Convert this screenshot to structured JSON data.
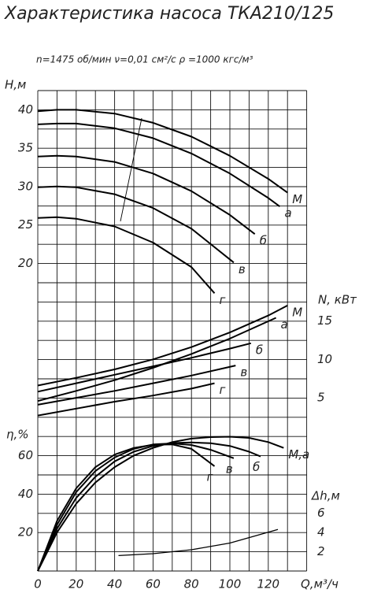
{
  "chart_data": [
    {
      "type": "line",
      "title": "Характеристика насоса ТКА210/125",
      "subtitle": "n=1475 об/мин   ν=0,01 см²/с   ρ =1000 кгс/м³",
      "y_label": "H,м",
      "y_axis_side": "left",
      "xlim": [
        0,
        140
      ],
      "ylim": [
        15,
        42.5
      ],
      "yticks": [
        20,
        25,
        30,
        35,
        40
      ],
      "series": [
        {
          "name": "М",
          "color": "#000000",
          "x": [
            0,
            10,
            20,
            40,
            60,
            80,
            100,
            120,
            130
          ],
          "values": [
            39.8,
            40,
            40,
            39.5,
            38.3,
            36.5,
            34,
            31,
            29.2
          ]
        },
        {
          "name": "а",
          "color": "#000000",
          "x": [
            0,
            10,
            20,
            40,
            60,
            80,
            100,
            120,
            126
          ],
          "values": [
            38.1,
            38.2,
            38.2,
            37.6,
            36.3,
            34.3,
            31.7,
            28.5,
            27.4
          ]
        },
        {
          "name": "б",
          "color": "#000000",
          "x": [
            0,
            10,
            20,
            40,
            60,
            80,
            100,
            113
          ],
          "values": [
            33.9,
            34,
            33.9,
            33.2,
            31.7,
            29.4,
            26.3,
            23.8
          ]
        },
        {
          "name": "в",
          "color": "#000000",
          "x": [
            0,
            10,
            20,
            40,
            60,
            80,
            102
          ],
          "values": [
            29.9,
            30,
            29.9,
            29,
            27.2,
            24.5,
            20.1
          ]
        },
        {
          "name": "г",
          "color": "#000000",
          "x": [
            0,
            10,
            20,
            40,
            60,
            80,
            92
          ],
          "values": [
            25.9,
            26,
            25.8,
            24.8,
            22.7,
            19.5,
            16.1
          ]
        }
      ]
    },
    {
      "type": "line",
      "y_label": "N, кВт",
      "y_axis_side": "right",
      "xlim": [
        0,
        140
      ],
      "ylim": [
        0,
        17.5
      ],
      "yticks": [
        5,
        10,
        15
      ],
      "series": [
        {
          "name": "М",
          "color": "#000000",
          "x": [
            0,
            20,
            40,
            60,
            80,
            100,
            120,
            130
          ],
          "values": [
            6.6,
            7.6,
            8.7,
            10,
            11.6,
            13.5,
            15.7,
            17
          ]
        },
        {
          "name": "а",
          "color": "#000000",
          "x": [
            0,
            20,
            40,
            60,
            80,
            100,
            124
          ],
          "values": [
            4.6,
            5.9,
            7.3,
            8.9,
            10.7,
            12.7,
            15.4
          ]
        },
        {
          "name": "б",
          "color": "#000000",
          "x": [
            0,
            20,
            40,
            60,
            80,
            100,
            111
          ],
          "values": [
            5.8,
            6.9,
            8,
            9.1,
            10.2,
            11.4,
            12.1
          ]
        },
        {
          "name": "в",
          "color": "#000000",
          "x": [
            0,
            20,
            40,
            60,
            80,
            103
          ],
          "values": [
            4.1,
            5,
            5.9,
            6.9,
            7.9,
            9.2
          ]
        },
        {
          "name": "г",
          "color": "#000000",
          "x": [
            0,
            20,
            40,
            60,
            80,
            92
          ],
          "values": [
            2.7,
            3.6,
            4.5,
            5.3,
            6.2,
            6.9
          ]
        }
      ]
    },
    {
      "type": "line",
      "y_label": "η,%",
      "y_axis_side": "left",
      "x_label": "Q,м³/ч",
      "xlim": [
        0,
        140
      ],
      "xticks": [
        0,
        20,
        40,
        60,
        80,
        100,
        120
      ],
      "ylim": [
        0,
        70
      ],
      "yticks": [
        20,
        40,
        60
      ],
      "series": [
        {
          "name": "М,а",
          "color": "#000000",
          "x": [
            0,
            10,
            20,
            30,
            40,
            50,
            60,
            70,
            80,
            90,
            100,
            110,
            120,
            128
          ],
          "values": [
            0,
            20,
            35,
            46,
            54,
            60,
            64,
            67,
            68.8,
            69.6,
            69.8,
            69.2,
            67,
            64
          ]
        },
        {
          "name": "б",
          "color": "#000000",
          "x": [
            0,
            10,
            20,
            30,
            40,
            50,
            60,
            70,
            80,
            90,
            100,
            110,
            116
          ],
          "values": [
            0,
            22,
            38,
            49,
            57,
            62,
            65,
            66.5,
            66.8,
            66.4,
            65,
            62,
            59.5
          ]
        },
        {
          "name": "в",
          "color": "#000000",
          "x": [
            0,
            10,
            20,
            30,
            40,
            50,
            60,
            70,
            80,
            90,
            102
          ],
          "values": [
            0,
            24,
            41,
            52,
            59,
            63.5,
            65.8,
            66.3,
            65.5,
            63,
            58.6
          ]
        },
        {
          "name": "г",
          "color": "#000000",
          "x": [
            0,
            10,
            20,
            30,
            40,
            50,
            60,
            70,
            80,
            92
          ],
          "values": [
            0,
            26,
            43,
            54,
            60.5,
            64,
            65.6,
            65.8,
            63.5,
            54.5
          ]
        }
      ]
    },
    {
      "type": "line",
      "y_label": "Δh,м",
      "y_axis_side": "right",
      "xlim": [
        0,
        140
      ],
      "ylim": [
        0,
        8
      ],
      "yticks": [
        2,
        4,
        6
      ],
      "series": [
        {
          "color": "#000000",
          "x": [
            42,
            60,
            80,
            100,
            125
          ],
          "values": [
            1.6,
            1.8,
            2.2,
            2.9,
            4.3
          ]
        }
      ]
    }
  ]
}
